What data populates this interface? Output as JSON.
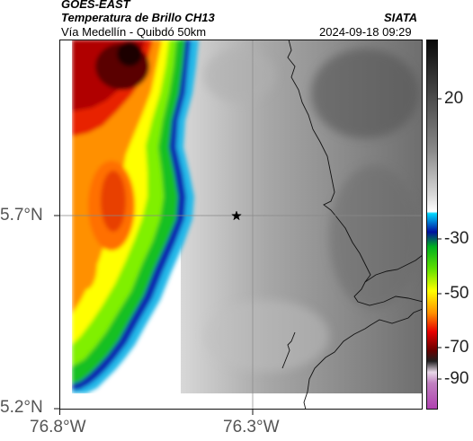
{
  "header": {
    "satellite": "GOES-EAST",
    "product": "Temperatura de Brillo CH13",
    "region": "Vía Medellín - Quibdó 50km",
    "org": "SIATA",
    "datetime": "2024-09-18 09:29"
  },
  "map": {
    "lat_ticks": [
      "5.7°N",
      "5.2°N"
    ],
    "lon_ticks": [
      "76.8°W",
      "76.3°W"
    ],
    "marker_icon": "star-icon"
  },
  "colorbar": {
    "ticks": [
      "20",
      "-30",
      "-50",
      "-70",
      "-90"
    ],
    "colors": [
      "#1a1a1a",
      "#5a5a5a",
      "#9a9a9a",
      "#e8e8e8",
      "#ffffff",
      "#00c8ff",
      "#0018b0",
      "#00c020",
      "#7cf000",
      "#ffff00",
      "#ff9000",
      "#e00000",
      "#600000",
      "#202020",
      "#c0a0c0",
      "#c040c0"
    ]
  }
}
